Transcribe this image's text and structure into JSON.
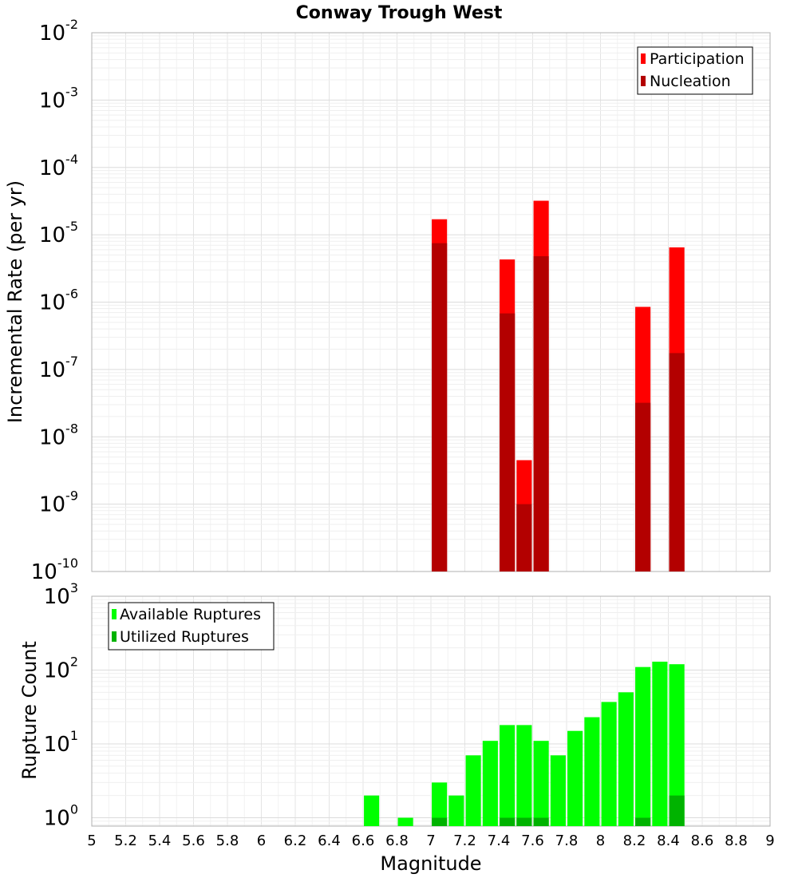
{
  "chart_data": [
    {
      "type": "bar",
      "title": "Conway Trough West",
      "ylabel": "Incremental Rate (per yr)",
      "xlabel": "",
      "y_scale": "log",
      "xlim": [
        5,
        9
      ],
      "ylim": [
        1e-10,
        0.01
      ],
      "y_tick_exponents": [
        -10,
        -9,
        -8,
        -7,
        -6,
        -5,
        -4,
        -3,
        -2
      ],
      "grid": true,
      "legend_position": "top-right",
      "bar_width": 0.09,
      "series": [
        {
          "name": "Participation",
          "color": "#ff0000",
          "x": [
            7.05,
            7.45,
            7.55,
            7.65,
            8.25,
            8.45
          ],
          "values": [
            1.7e-05,
            4.3e-06,
            4.5e-09,
            3.2e-05,
            8.5e-07,
            6.5e-06
          ]
        },
        {
          "name": "Nucleation",
          "color": "#b30000",
          "x": [
            7.05,
            7.45,
            7.55,
            7.65,
            8.25,
            8.45
          ],
          "values": [
            7.5e-06,
            6.8e-07,
            1e-09,
            4.8e-06,
            3.2e-08,
            1.75e-07
          ]
        }
      ]
    },
    {
      "type": "bar",
      "title": "",
      "ylabel": "Rupture Count",
      "xlabel": "Magnitude",
      "y_scale": "log",
      "xlim": [
        5,
        9
      ],
      "ylim": [
        0.77,
        1000
      ],
      "y_tick_exponents": [
        0,
        1,
        2,
        3
      ],
      "x_ticks": [
        "5",
        "5.2",
        "5.4",
        "5.6",
        "5.8",
        "6",
        "6.2",
        "6.4",
        "6.6",
        "6.8",
        "7",
        "7.2",
        "7.4",
        "7.6",
        "7.8",
        "8",
        "8.2",
        "8.4",
        "8.6",
        "8.8",
        "9"
      ],
      "grid": true,
      "legend_position": "top-left",
      "bar_width": 0.09,
      "series": [
        {
          "name": "Available Ruptures",
          "color": "#00ff00",
          "x": [
            6.65,
            6.85,
            7.05,
            7.15,
            7.25,
            7.35,
            7.45,
            7.55,
            7.65,
            7.75,
            7.85,
            7.95,
            8.05,
            8.15,
            8.25,
            8.35,
            8.45
          ],
          "values": [
            2,
            1,
            3,
            2,
            7,
            11,
            18,
            18,
            11,
            7,
            15,
            23,
            37,
            50,
            110,
            130,
            120
          ]
        },
        {
          "name": "Utilized Ruptures",
          "color": "#00b300",
          "x": [
            7.05,
            7.45,
            7.55,
            7.65,
            8.25,
            8.45
          ],
          "values": [
            1,
            1,
            1,
            1,
            1,
            2
          ]
        }
      ]
    }
  ]
}
